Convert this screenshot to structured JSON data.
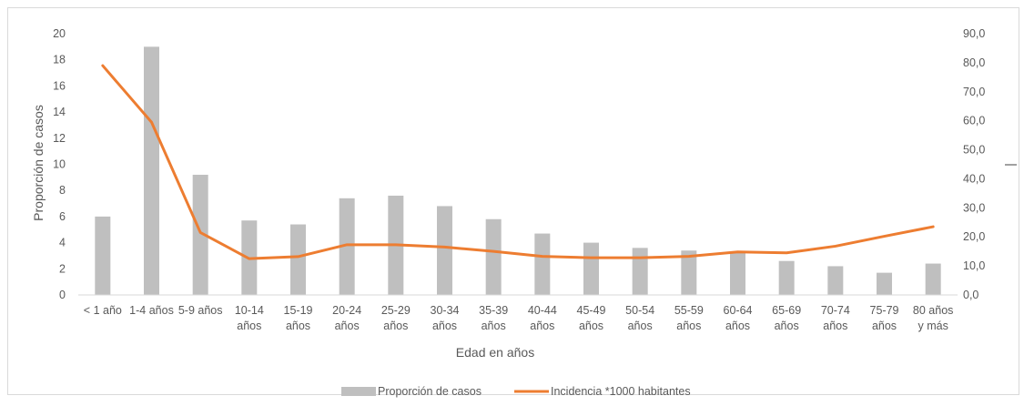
{
  "chart_data": {
    "type": "bar+line",
    "categories": [
      [
        "< 1 año"
      ],
      [
        "1-4 años"
      ],
      [
        "5-9 años"
      ],
      [
        "10-14",
        "años"
      ],
      [
        "15-19",
        "años"
      ],
      [
        "20-24",
        "años"
      ],
      [
        "25-29",
        "años"
      ],
      [
        "30-34",
        "años"
      ],
      [
        "35-39",
        "años"
      ],
      [
        "40-44",
        "años"
      ],
      [
        "45-49",
        "años"
      ],
      [
        "50-54",
        "años"
      ],
      [
        "55-59",
        "años"
      ],
      [
        "60-64",
        "años"
      ],
      [
        "65-69",
        "años"
      ],
      [
        "70-74",
        "años"
      ],
      [
        "75-79",
        "años"
      ],
      [
        "80 años",
        "y más"
      ]
    ],
    "series": [
      {
        "name": "Proporción de casos",
        "kind": "bar",
        "axis": "left",
        "color": "#bfbfbf",
        "values": [
          6.0,
          19.0,
          9.2,
          5.7,
          5.4,
          7.4,
          7.6,
          6.8,
          5.8,
          4.7,
          4.0,
          3.6,
          3.4,
          3.3,
          2.6,
          2.2,
          1.7,
          2.4
        ]
      },
      {
        "name": "Incidencia  *1000 habitantes",
        "kind": "line",
        "axis": "right",
        "color": "#ed7d31",
        "values": [
          79.0,
          59.5,
          21.5,
          12.5,
          13.2,
          17.3,
          17.3,
          16.5,
          15.0,
          13.3,
          12.8,
          12.8,
          13.3,
          14.8,
          14.5,
          16.8,
          20.2,
          23.5
        ]
      }
    ],
    "xlabel": "Edad en años",
    "ylabel": "Proporción de casos",
    "ylim": [
      0,
      20
    ],
    "y2lim": [
      0,
      90
    ],
    "y_ticks": [
      "0",
      "2",
      "4",
      "6",
      "8",
      "10",
      "12",
      "14",
      "16",
      "18",
      "20"
    ],
    "y2_ticks": [
      "0,0",
      "10,0",
      "20,0",
      "30,0",
      "40,0",
      "50,0",
      "60,0",
      "70,0",
      "80,0",
      "90,0"
    ],
    "legend_position": "bottom",
    "grid": false
  }
}
